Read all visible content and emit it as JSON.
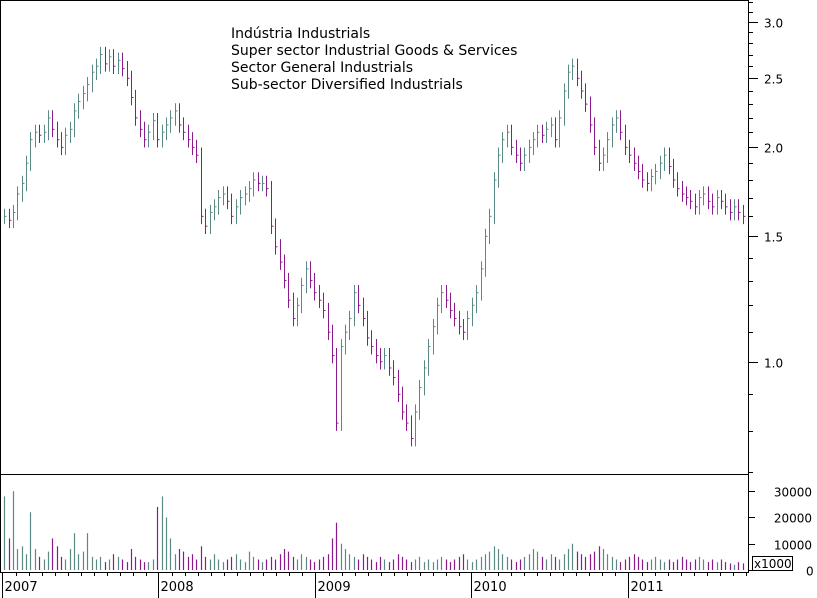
{
  "chart_data": {
    "type": "ohlc-bar",
    "title_lines": [
      "Indústria  Industrials",
      "Super sector Industrial Goods & Services",
      "Sector  General Industrials",
      "Sub-sector Diversified Industrials"
    ],
    "price_axis": {
      "scale": "log",
      "range": [
        0.7,
        3.2
      ],
      "ticks": [
        {
          "value": 1.0,
          "label": "1.0"
        },
        {
          "value": 1.5,
          "label": "1.5"
        },
        {
          "value": 2.0,
          "label": "2.0"
        },
        {
          "value": 2.5,
          "label": "2.5"
        },
        {
          "value": 3.0,
          "label": "3.0"
        }
      ]
    },
    "volume_axis": {
      "range": [
        0,
        35000
      ],
      "unit_label": "x1000",
      "ticks": [
        {
          "value": 0,
          "label": "0"
        },
        {
          "value": 10000,
          "label": "10000"
        },
        {
          "value": 20000,
          "label": "20000"
        },
        {
          "value": 30000,
          "label": "30000"
        }
      ]
    },
    "x_axis": {
      "years": [
        "2007",
        "2008",
        "2009",
        "2010",
        "2011"
      ]
    },
    "colors": {
      "up": "#5b8a85",
      "down": "#8b1a8b"
    },
    "closes": [
      1.6,
      1.58,
      1.62,
      1.72,
      1.78,
      1.9,
      2.05,
      2.1,
      2.08,
      2.1,
      2.2,
      2.12,
      2.05,
      2.0,
      2.08,
      2.12,
      2.25,
      2.32,
      2.38,
      2.45,
      2.55,
      2.6,
      2.7,
      2.62,
      2.68,
      2.6,
      2.65,
      2.58,
      2.5,
      2.35,
      2.2,
      2.12,
      2.05,
      2.1,
      2.18,
      2.05,
      2.1,
      2.15,
      2.2,
      2.25,
      2.15,
      2.1,
      2.05,
      2.0,
      1.95,
      1.6,
      1.55,
      1.62,
      1.65,
      1.7,
      1.72,
      1.68,
      1.6,
      1.65,
      1.7,
      1.72,
      1.75,
      1.8,
      1.78,
      1.78,
      1.75,
      1.55,
      1.45,
      1.38,
      1.3,
      1.22,
      1.15,
      1.2,
      1.28,
      1.35,
      1.3,
      1.25,
      1.22,
      1.18,
      1.1,
      1.02,
      0.82,
      1.05,
      1.1,
      1.15,
      1.25,
      1.2,
      1.15,
      1.08,
      1.05,
      1.02,
      1.0,
      1.02,
      0.98,
      0.95,
      0.9,
      0.85,
      0.82,
      0.78,
      0.85,
      0.92,
      0.98,
      1.05,
      1.12,
      1.2,
      1.25,
      1.22,
      1.18,
      1.15,
      1.12,
      1.1,
      1.15,
      1.2,
      1.25,
      1.35,
      1.5,
      1.6,
      1.8,
      1.95,
      2.05,
      2.1,
      2.0,
      1.95,
      1.9,
      1.95,
      2.0,
      2.05,
      2.1,
      2.08,
      2.12,
      2.15,
      2.05,
      2.2,
      2.4,
      2.55,
      2.6,
      2.5,
      2.4,
      2.3,
      2.15,
      2.0,
      1.9,
      1.95,
      2.05,
      2.15,
      2.2,
      2.1,
      2.0,
      1.95,
      1.9,
      1.85,
      1.8,
      1.78,
      1.82,
      1.85,
      1.9,
      1.95,
      1.88,
      1.8,
      1.75,
      1.72,
      1.7,
      1.68,
      1.65,
      1.7,
      1.72,
      1.68,
      1.65,
      1.7,
      1.68,
      1.65,
      1.62,
      1.65,
      1.62,
      1.6
    ],
    "volumes": [
      28000,
      12000,
      30000,
      8000,
      9000,
      6000,
      22000,
      8000,
      5000,
      4000,
      7000,
      12000,
      9000,
      5000,
      4000,
      8000,
      14000,
      6000,
      7000,
      14000,
      5000,
      4000,
      5000,
      3000,
      4000,
      6000,
      5000,
      4000,
      3000,
      8000,
      5000,
      4000,
      3000,
      3000,
      4000,
      24000,
      28000,
      20000,
      12000,
      6000,
      8000,
      7000,
      5000,
      6000,
      4000,
      9000,
      5000,
      4000,
      6000,
      4000,
      3000,
      4000,
      5000,
      6000,
      4000,
      3000,
      7000,
      5000,
      4000,
      3000,
      4000,
      5000,
      4000,
      6000,
      8000,
      7000,
      5000,
      4000,
      6000,
      5000,
      4000,
      3000,
      4000,
      5000,
      6000,
      12000,
      18000,
      10000,
      8000,
      6000,
      5000,
      4000,
      6000,
      5000,
      4000,
      3000,
      5000,
      4000,
      3000,
      4000,
      6000,
      5000,
      4000,
      3000,
      4000,
      5000,
      3000,
      4000,
      3000,
      4000,
      5000,
      4000,
      3000,
      4000,
      5000,
      6000,
      4000,
      3000,
      4000,
      5000,
      6000,
      7000,
      9000,
      8000,
      6000,
      5000,
      4000,
      3000,
      4000,
      5000,
      6000,
      8000,
      7000,
      5000,
      4000,
      6000,
      5000,
      4000,
      6000,
      8000,
      10000,
      7000,
      6000,
      5000,
      6000,
      7000,
      9000,
      8000,
      6000,
      5000,
      4000,
      3000,
      4000,
      5000,
      6000,
      5000,
      4000,
      3000,
      4000,
      5000,
      4000,
      3000,
      4000,
      3000,
      4000,
      5000,
      4000,
      3000,
      4000,
      5000,
      4000,
      3000,
      4000,
      3000,
      4000,
      3000,
      2500,
      2000,
      3000,
      2500
    ]
  }
}
